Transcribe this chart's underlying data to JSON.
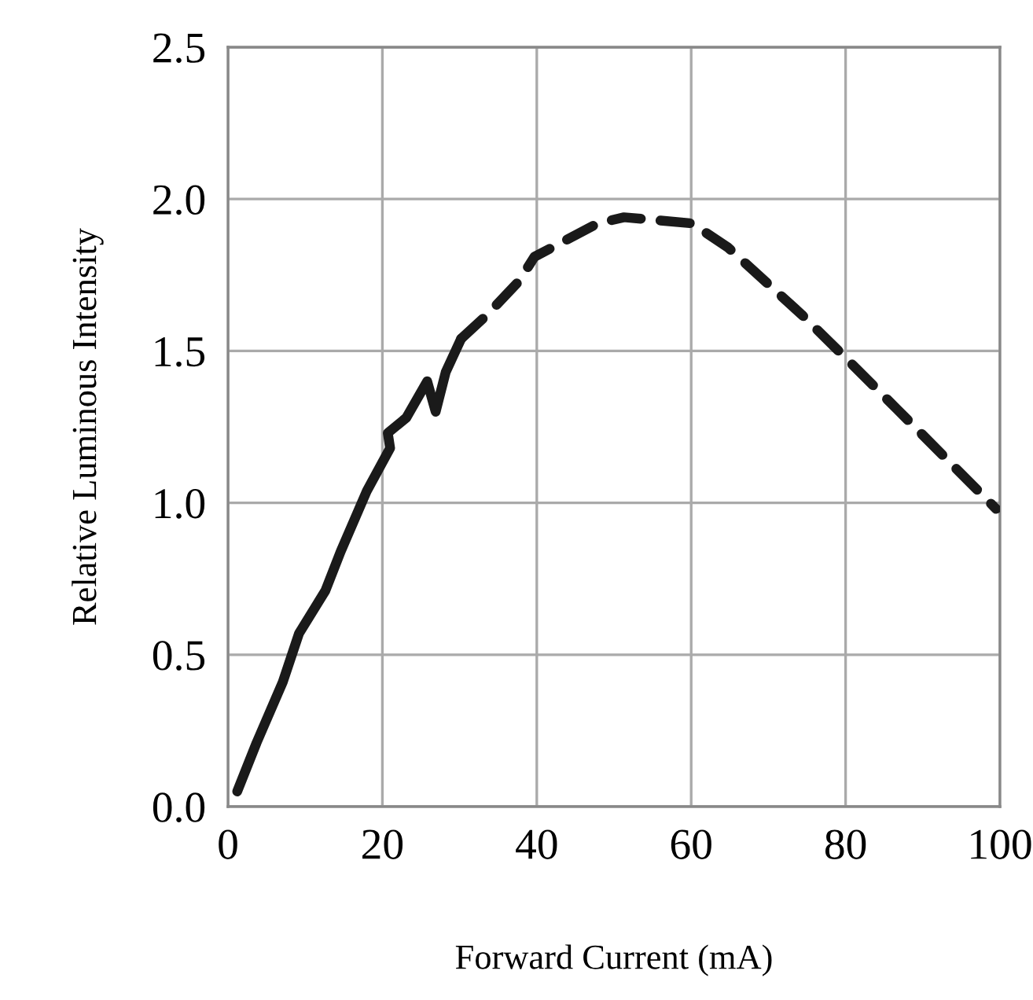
{
  "chart_data": {
    "type": "line",
    "xlabel": "Forward Current (mA)",
    "ylabel": "Relative Luminous Intensity",
    "xlim": [
      0,
      100
    ],
    "ylim": [
      0,
      2.5
    ],
    "xticks": [
      0,
      20,
      40,
      60,
      80,
      100
    ],
    "yticks": [
      {
        "value": 0,
        "label": "0.0"
      },
      {
        "value": 0.5,
        "label": "0.5"
      },
      {
        "value": 1,
        "label": "1.0"
      },
      {
        "value": 1.5,
        "label": "1.5"
      },
      {
        "value": 2,
        "label": "2.0"
      },
      {
        "value": 2.5,
        "label": "2.5"
      }
    ],
    "grid": true,
    "marker": "none",
    "series": [
      {
        "color": "#1a1a1a",
        "line_style": "solid",
        "x": [
          1.2,
          3.7,
          7.1,
          9.2,
          12.6,
          14.6,
          18.0,
          21.0,
          20.7,
          23.1,
          25.8,
          26.9,
          28.2,
          30.2
        ],
        "values": [
          0.05,
          0.21,
          0.41,
          0.57,
          0.71,
          0.84,
          1.04,
          1.18,
          1.23,
          1.28,
          1.4,
          1.3,
          1.43,
          1.54
        ]
      },
      {
        "color": "#1a1a1a",
        "line_style": "dashed",
        "x": [
          30.2,
          33.6,
          37.7,
          39.7,
          47.9,
          51.3,
          60.1,
          64.8,
          74.3,
          79.1,
          86.6,
          99.5
        ],
        "values": [
          1.54,
          1.62,
          1.73,
          1.81,
          1.92,
          1.94,
          1.92,
          1.84,
          1.62,
          1.5,
          1.31,
          0.98
        ]
      }
    ]
  }
}
